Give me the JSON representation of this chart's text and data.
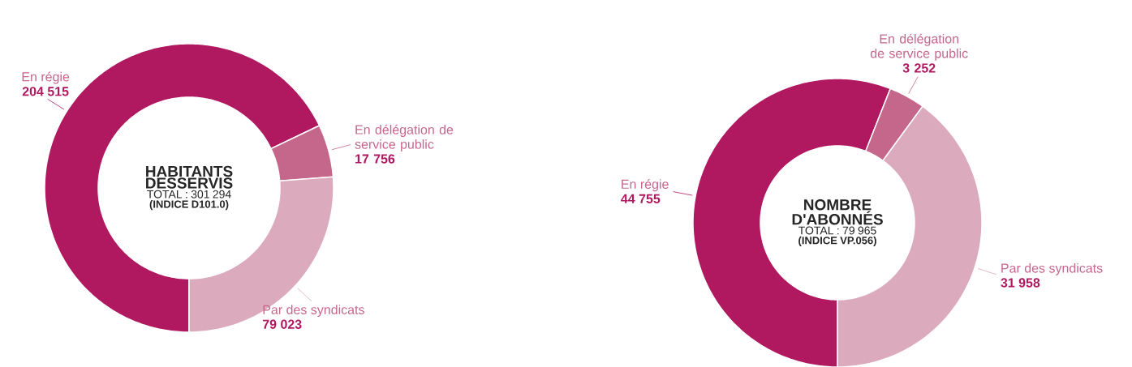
{
  "chart_data": [
    {
      "type": "donut",
      "title": "HABITANTS DESSERVIS",
      "subtitle": "TOTAL : 301 294",
      "annotations": [
        "(INDICE D101.0)"
      ],
      "categories": [
        "En régie",
        "En délégation de service public",
        "Par des syndicats"
      ],
      "values": [
        204515,
        17756,
        79023
      ],
      "value_labels": [
        "204 515",
        "17 756",
        "79 023"
      ],
      "colors": [
        "#b01860",
        "#c4678b",
        "#dcaabd"
      ]
    },
    {
      "type": "donut",
      "title": "NOMBRE D'ABONNÉS",
      "subtitle": "TOTAL : 79 965",
      "annotations": [
        "(INDICE VP.056)"
      ],
      "categories": [
        "En régie",
        "En délégation de service public",
        "Par des syndicats"
      ],
      "values": [
        44755,
        3252,
        31958
      ],
      "value_labels": [
        "44 755",
        "3 252",
        "31 958"
      ],
      "colors": [
        "#b01860",
        "#c4678b",
        "#dcaabd"
      ]
    }
  ]
}
